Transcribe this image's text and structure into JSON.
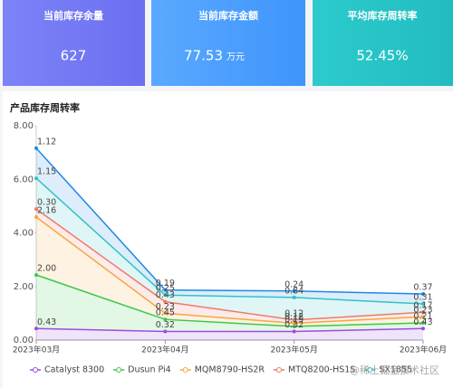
{
  "cards": [
    {
      "title": "当前库存余量",
      "value": "627"
    },
    {
      "title": "当前库存金额",
      "value": "77.53",
      "unit": "万元"
    },
    {
      "title": "平均库存周转率",
      "value": "52.45%"
    }
  ],
  "chart_data": {
    "type": "stacked-area",
    "title": "产品库存周转率",
    "categories": [
      "2023年03月",
      "2023年04月",
      "2023年05月",
      "2023年06月"
    ],
    "ylim": [
      0,
      8
    ],
    "yticks": [
      {
        "value": 0,
        "label": "0.00"
      },
      {
        "value": 2,
        "label": "2.00"
      },
      {
        "value": 4,
        "label": "4.00"
      },
      {
        "value": 6,
        "label": "6.00"
      },
      {
        "value": 8,
        "label": "8.00"
      }
    ],
    "grid": false,
    "series": [
      {
        "name": "Catalyst 8300",
        "color": "#9b4de0",
        "values": [
          0.43,
          0.32,
          0.32,
          0.43
        ],
        "value_labels": [
          "0.43",
          "0.32",
          "0.32",
          "0.43"
        ]
      },
      {
        "name": "Dusun Pi4",
        "color": "#3cc84a",
        "values": [
          2,
          0.45,
          0.19,
          0.21
        ],
        "value_labels": [
          "2.00",
          "0.45",
          "0.19",
          "0.21"
        ]
      },
      {
        "name": "MQM8790-HS2R",
        "color": "#f5a742",
        "values": [
          2.16,
          0.23,
          0.12,
          0.23
        ],
        "value_labels": [
          "2.16",
          "0.23",
          "0.12",
          "0.23"
        ]
      },
      {
        "name": "MTQ8200-HS1S",
        "color": "#ee7a6a",
        "values": [
          0.3,
          0.43,
          0.12,
          0.17
        ],
        "value_labels": [
          "0.30",
          "0.43",
          "0.12",
          "0.17"
        ]
      },
      {
        "name": "SX1855",
        "color": "#2ec4c4",
        "values": [
          1.15,
          0.25,
          0.84,
          0.31
        ],
        "value_labels": [
          "1.15",
          "0.25",
          "0.84",
          "0.31"
        ]
      },
      {
        "color": "#1e88e5",
        "values": [
          1.12,
          0.19,
          0.24,
          0.37
        ],
        "value_labels": [
          "1.12",
          "0.19",
          "0.24",
          "0.37"
        ]
      }
    ]
  },
  "watermark": "@稀土掘金技术社区"
}
